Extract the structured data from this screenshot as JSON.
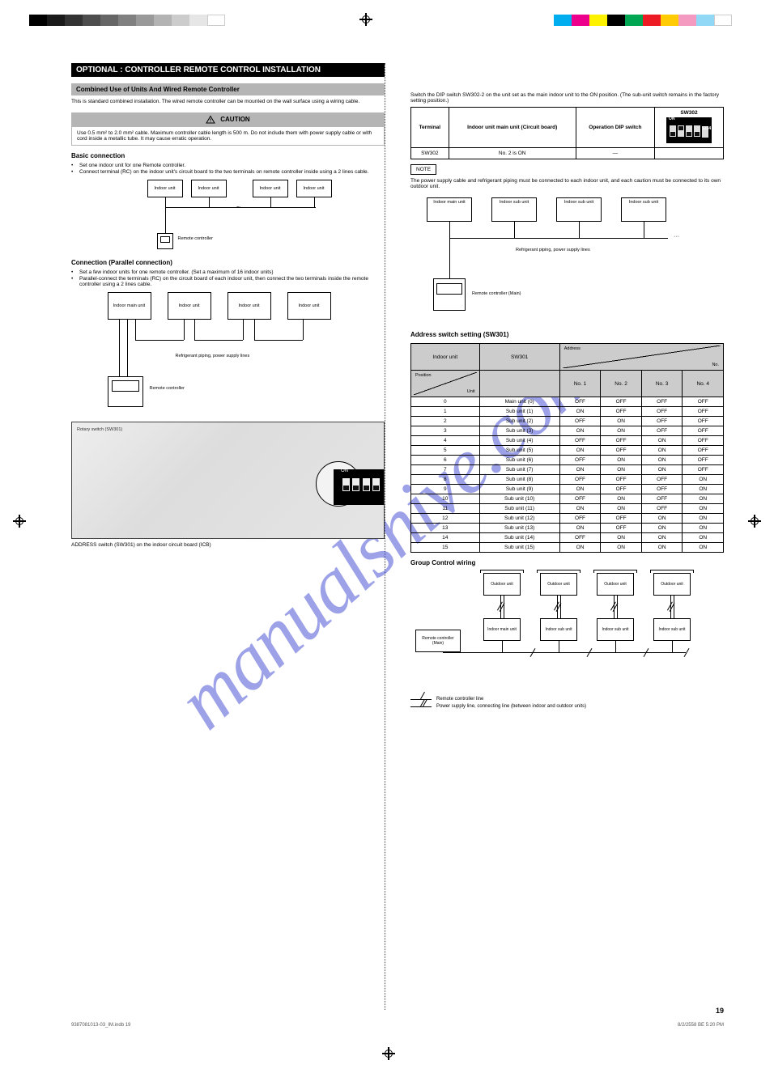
{
  "watermark": "manualshive.com",
  "print_bars": {
    "grayscale": [
      "#000000",
      "#1a1a1a",
      "#333333",
      "#4d4d4d",
      "#666666",
      "#808080",
      "#999999",
      "#b3b3b3",
      "#cccccc",
      "#e6e6e6",
      "#ffffff"
    ],
    "color": [
      "#00aeef",
      "#ec008c",
      "#fff200",
      "#000000",
      "#00a651",
      "#ed1c24",
      "#ffcb05",
      "#f49ac1",
      "#91d8f7",
      "#ffffff"
    ]
  },
  "left_col": {
    "section": "OPTIONAL : CONTROLLER REMOTE CONTROL INSTALLATION",
    "subsection": "Combined Use of Units And Wired Remote Controller",
    "intro": "This is standard combined installation. The wired remote controller can be mounted on the wall surface using a wiring cable.",
    "caution_title": "CAUTION",
    "caution_body": "Use 0.5 mm² to 2.0 mm² cable. Maximum controller cable length is 500 m. Do not include them with power supply cable or with cord inside a metallic tube. It may cause erratic operation.",
    "basic_hdr": "Basic connection",
    "basic_bullets": [
      "Set one indoor unit for one Remote controller.",
      "Connect terminal (RC) on the indoor unit's circuit board to the two terminals on remote controller inside using a 2 lines cable."
    ],
    "parallel_hdr": "Connection (Parallel connection)",
    "parallel_bullets": [
      "Set a few indoor units for one remote controller. (Set a maximum of 16 indoor units)",
      "Parallel-connect the terminals (RC) on the circuit board of each indoor unit, then connect the two terminals inside the remote controller using a 2 lines cable."
    ],
    "pcb_label": "Rotary switch (SW301)",
    "pcb_caption": "ADDRESS switch (SW301) on the indoor circuit board (ICB)",
    "unit_labels": {
      "indoor": "Indoor unit",
      "main": "Indoor main unit",
      "rc": "Remote controller",
      "ref_power": "Refrigerant piping, power supply lines"
    }
  },
  "right_col": {
    "case2_intro": "Switch the DIP switch SW302-2 on the unit set as the main indoor unit to the ON position. (The sub-unit switch remains in the factory setting position.)",
    "dip_table": {
      "headers": [
        "Terminal",
        "Indoor unit main unit (Circuit board)",
        "Operation DIP switch",
        "SW302"
      ],
      "row": {
        "c1": "SW302",
        "c2": "No. 2 is ON",
        "c3": "—"
      },
      "switches": [
        "off",
        "on",
        "off",
        "off"
      ]
    },
    "note_label": "NOTE",
    "note_body": "The power supply cable and refrigerant piping must be connected to each indoor unit, and each caution must be connected to its own outdoor unit.",
    "bus_labels": {
      "main": "Indoor main unit",
      "sub": "Indoor sub unit",
      "rc": "Remote controller (Main)",
      "pp": "Refrigerant piping, power supply lines"
    },
    "addr_table": {
      "title": "Address switch setting (SW301)",
      "head_top": [
        "Indoor unit",
        "SW301",
        "SW301",
        "SW301",
        "SW301"
      ],
      "diag1_tl": "Position",
      "diag1_br": "Unit",
      "diag2_tl": "Address",
      "diag2_br": "No.",
      "cols": [
        "No. 1",
        "No. 2",
        "No. 3",
        "No. 4"
      ],
      "rows": [
        {
          "unit": "0",
          "addr": "Main unit (0)",
          "s": [
            "OFF",
            "OFF",
            "OFF",
            "OFF"
          ]
        },
        {
          "unit": "1",
          "addr": "Sub unit (1)",
          "s": [
            "ON",
            "OFF",
            "OFF",
            "OFF"
          ]
        },
        {
          "unit": "2",
          "addr": "Sub unit (2)",
          "s": [
            "OFF",
            "ON",
            "OFF",
            "OFF"
          ]
        },
        {
          "unit": "3",
          "addr": "Sub unit (3)",
          "s": [
            "ON",
            "ON",
            "OFF",
            "OFF"
          ]
        },
        {
          "unit": "4",
          "addr": "Sub unit (4)",
          "s": [
            "OFF",
            "OFF",
            "ON",
            "OFF"
          ]
        },
        {
          "unit": "5",
          "addr": "Sub unit (5)",
          "s": [
            "ON",
            "OFF",
            "ON",
            "OFF"
          ]
        },
        {
          "unit": "6",
          "addr": "Sub unit (6)",
          "s": [
            "OFF",
            "ON",
            "ON",
            "OFF"
          ]
        },
        {
          "unit": "7",
          "addr": "Sub unit (7)",
          "s": [
            "ON",
            "ON",
            "ON",
            "OFF"
          ]
        },
        {
          "unit": "8",
          "addr": "Sub unit (8)",
          "s": [
            "OFF",
            "OFF",
            "OFF",
            "ON"
          ]
        },
        {
          "unit": "9",
          "addr": "Sub unit (9)",
          "s": [
            "ON",
            "OFF",
            "OFF",
            "ON"
          ]
        },
        {
          "unit": "10",
          "addr": "Sub unit (10)",
          "s": [
            "OFF",
            "ON",
            "OFF",
            "ON"
          ]
        },
        {
          "unit": "11",
          "addr": "Sub unit (11)",
          "s": [
            "ON",
            "ON",
            "OFF",
            "ON"
          ]
        },
        {
          "unit": "12",
          "addr": "Sub unit (12)",
          "s": [
            "OFF",
            "OFF",
            "ON",
            "ON"
          ]
        },
        {
          "unit": "13",
          "addr": "Sub unit (13)",
          "s": [
            "ON",
            "OFF",
            "ON",
            "ON"
          ]
        },
        {
          "unit": "14",
          "addr": "Sub unit (14)",
          "s": [
            "OFF",
            "ON",
            "ON",
            "ON"
          ]
        },
        {
          "unit": "15",
          "addr": "Sub unit (15)",
          "s": [
            "ON",
            "ON",
            "ON",
            "ON"
          ]
        }
      ]
    },
    "group_hdr": "Group Control wiring",
    "group_labels": {
      "outdoor": "Outdoor unit",
      "indoor_main": "Indoor main unit",
      "indoor_sub": "Indoor sub unit",
      "rc": "Remote controller (Main)"
    },
    "legend": {
      "single": "Remote controller line",
      "double": "Power supply line, connecting line (between indoor and outdoor units)"
    }
  },
  "footer": {
    "pagenum": "19",
    "file": "9387081013-03_IM.indb   19",
    "date": "8/2/2558 BE   5:20 PM"
  }
}
